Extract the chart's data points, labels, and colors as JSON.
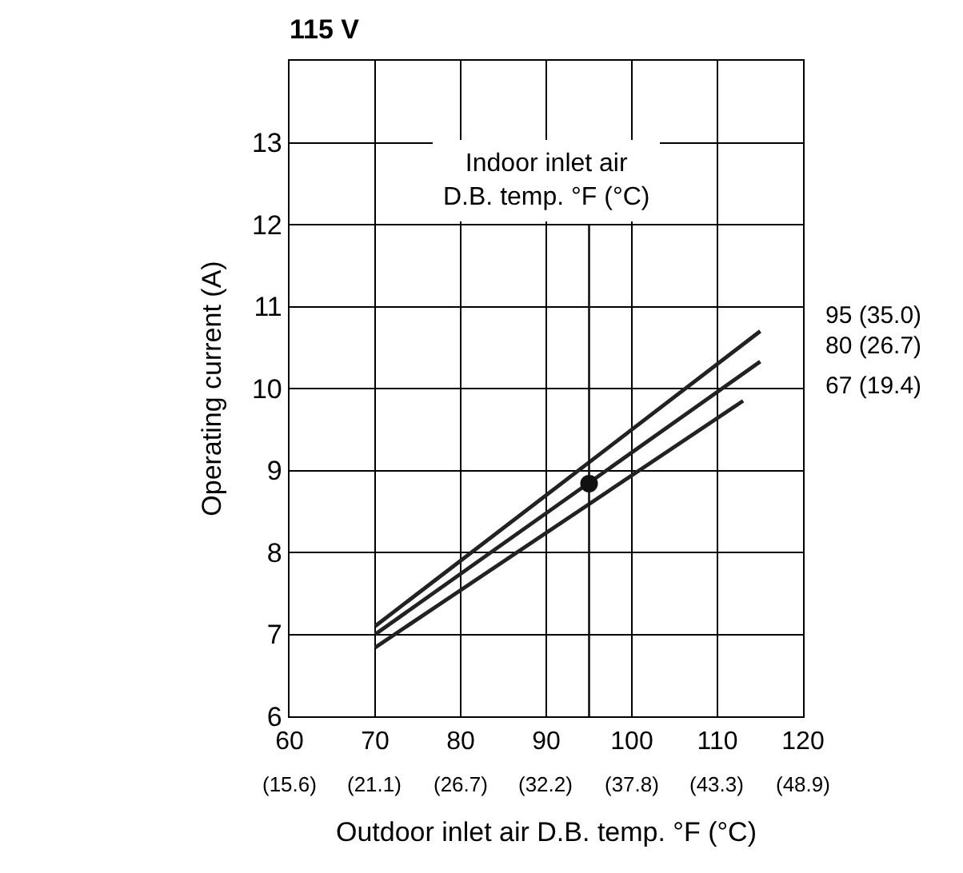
{
  "chart_data": {
    "type": "line",
    "title": "115 V",
    "xlabel": "Outdoor inlet air D.B. temp. °F (°C)",
    "ylabel": "Operating current (A)",
    "legend_title": "Indoor inlet air\nD.B. temp. °F (°C)",
    "series": [
      {
        "name": "95 (35.0)",
        "color": "#222222",
        "x": [
          70,
          115
        ],
        "values": [
          7.1,
          10.7
        ]
      },
      {
        "name": "80 (26.7)",
        "color": "#222222",
        "x": [
          70,
          115
        ],
        "values": [
          7.0,
          10.33
        ]
      },
      {
        "name": "67 (19.4)",
        "color": "#222222",
        "x": [
          70,
          113
        ],
        "values": [
          6.84,
          9.85
        ]
      },
      {
        "type": "line",
        "color": "#111111",
        "x": [
          95,
          95
        ],
        "values": [
          6,
          12
        ]
      },
      {
        "type": "scatter",
        "marker": "circle",
        "color": "#111111",
        "x": [
          95
        ],
        "values": [
          8.84
        ]
      }
    ],
    "xlim": [
      60,
      120
    ],
    "ylim": [
      6,
      14
    ],
    "xticks": [
      60,
      70,
      80,
      90,
      100,
      110,
      120
    ],
    "x2lim": [
      15.6,
      48.9
    ],
    "x2ticks": [
      {
        "value": 15.6,
        "label": "(15.6)"
      },
      {
        "value": 21.1,
        "label": "(21.1)"
      },
      {
        "value": 26.7,
        "label": "(26.7)"
      },
      {
        "value": 32.2,
        "label": "(32.2)"
      },
      {
        "value": 37.8,
        "label": "(37.8)"
      },
      {
        "value": 43.3,
        "label": "(43.3)"
      },
      {
        "value": 48.9,
        "label": "(48.9)"
      }
    ],
    "yticks": [
      6,
      7,
      8,
      9,
      10,
      11,
      12,
      13
    ],
    "grid": true,
    "marker": "none",
    "line_style": "solid"
  }
}
